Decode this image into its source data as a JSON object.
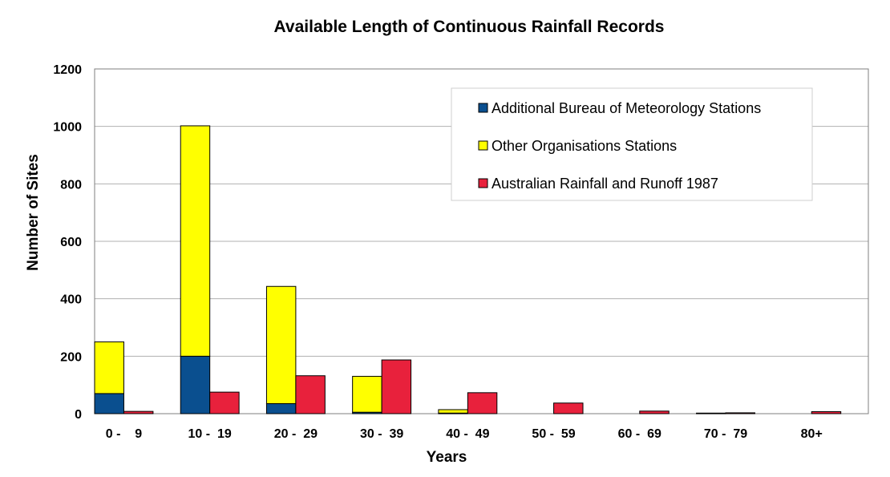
{
  "chart_data": {
    "type": "bar",
    "title": "Available Length of Continuous Rainfall Records",
    "xlabel": "Years",
    "ylabel": "Number of Sites",
    "ylim": [
      0,
      1200
    ],
    "yticks": [
      0,
      200,
      400,
      600,
      800,
      1000,
      1200
    ],
    "grid": true,
    "legend_position": "top-right",
    "categories": [
      "0 -    9",
      "10 -  19",
      "20 -  29",
      "30 -  39",
      "40 -  49",
      "50 -  59",
      "60 -  69",
      "70 -  79",
      "80+"
    ],
    "stacked_groups": [
      {
        "name": "Additional Bureau of Meteorology Stations",
        "color": "#0a4f8f",
        "values": [
          70,
          200,
          35,
          5,
          2,
          0,
          0,
          0,
          0
        ]
      },
      {
        "name": "Other Organisations Stations",
        "color": "#ffff00",
        "values": [
          180,
          802,
          408,
          125,
          12,
          0,
          0,
          2,
          0
        ]
      }
    ],
    "series_separate": [
      {
        "name": "Australian Rainfall and Runoff 1987",
        "color": "#e8213c",
        "values": [
          8,
          75,
          132,
          187,
          73,
          37,
          9,
          3,
          7
        ]
      }
    ],
    "legend": [
      {
        "label": "Additional Bureau of Meteorology Stations",
        "color": "#0a4f8f"
      },
      {
        "label": "Other Organisations Stations",
        "color": "#ffff00"
      },
      {
        "label": "Australian Rainfall and Runoff 1987",
        "color": "#e8213c"
      }
    ]
  }
}
